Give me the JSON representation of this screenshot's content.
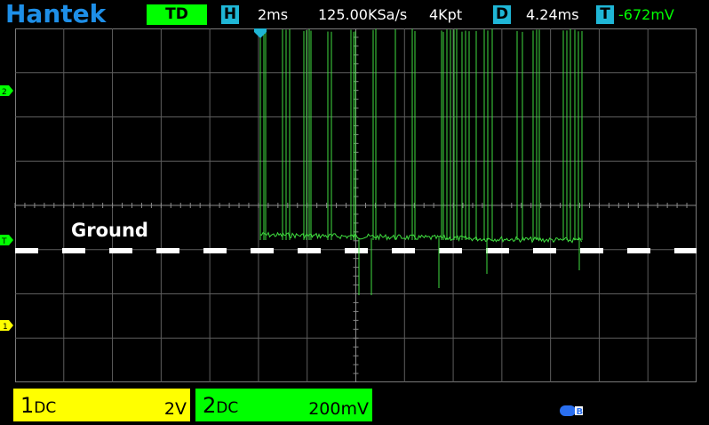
{
  "header": {
    "brand": "Hantek",
    "mode": "TD",
    "horizontal": {
      "badge": "H",
      "timebase": "2ms",
      "sample_rate": "125.00KSa/s",
      "memory_depth": "4Kpt"
    },
    "delay": {
      "badge": "D",
      "value": "4.24ms"
    },
    "trigger": {
      "badge": "T",
      "level": "-672mV"
    }
  },
  "screen": {
    "annotation": "Ground",
    "markers": {
      "ch2": "2",
      "trigger": "T",
      "ch1": "1"
    }
  },
  "channels": [
    {
      "number": "1",
      "coupling": "DC",
      "scale": "2V",
      "color": "#ffff00"
    },
    {
      "number": "2",
      "coupling": "DC",
      "scale": "200mV",
      "color": "#00ff00"
    }
  ],
  "status": {
    "icon": "usb-icon",
    "usb_label": "B"
  },
  "colors": {
    "brand": "#1e8fe8",
    "badge": "#1fb6d6",
    "ch1": "#ffff00",
    "ch2": "#00ff00",
    "grid": "#7a7a7a"
  }
}
